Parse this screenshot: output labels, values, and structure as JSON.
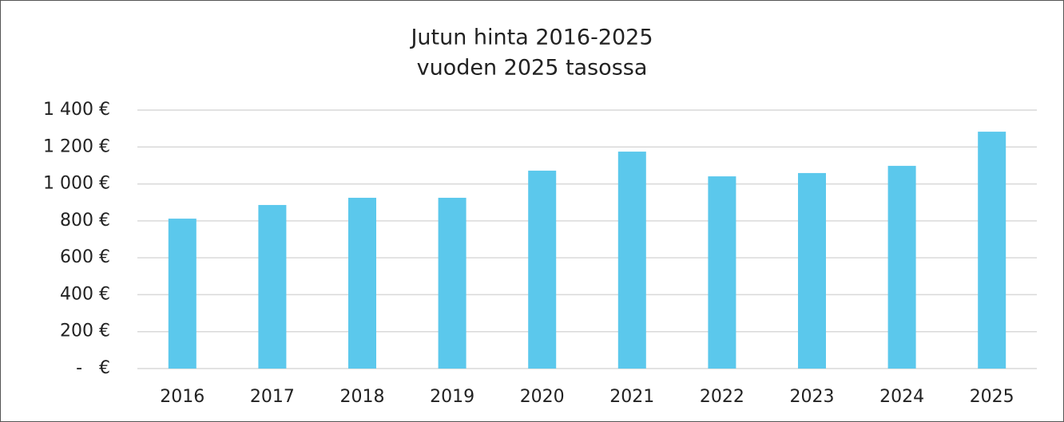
{
  "chart_data": {
    "type": "bar",
    "title": "Jutun hinta 2016-2025",
    "subtitle": "vuoden 2025 tasossa",
    "categories": [
      "2016",
      "2017",
      "2018",
      "2019",
      "2020",
      "2021",
      "2022",
      "2023",
      "2024",
      "2025"
    ],
    "values": [
      812,
      886,
      925,
      925,
      1072,
      1175,
      1041,
      1059,
      1098,
      1283
    ],
    "color": "#5bc8ec",
    "ylim": [
      0,
      1400
    ],
    "yticks": [
      {
        "value": 0,
        "label": "-   €"
      },
      {
        "value": 200,
        "label": "200 €"
      },
      {
        "value": 400,
        "label": "400 €"
      },
      {
        "value": 600,
        "label": "600 €"
      },
      {
        "value": 800,
        "label": "800 €"
      },
      {
        "value": 1000,
        "label": "1 000 €"
      },
      {
        "value": 1200,
        "label": "1 200 €"
      },
      {
        "value": 1400,
        "label": "1 400 €"
      }
    ],
    "grid": true
  }
}
